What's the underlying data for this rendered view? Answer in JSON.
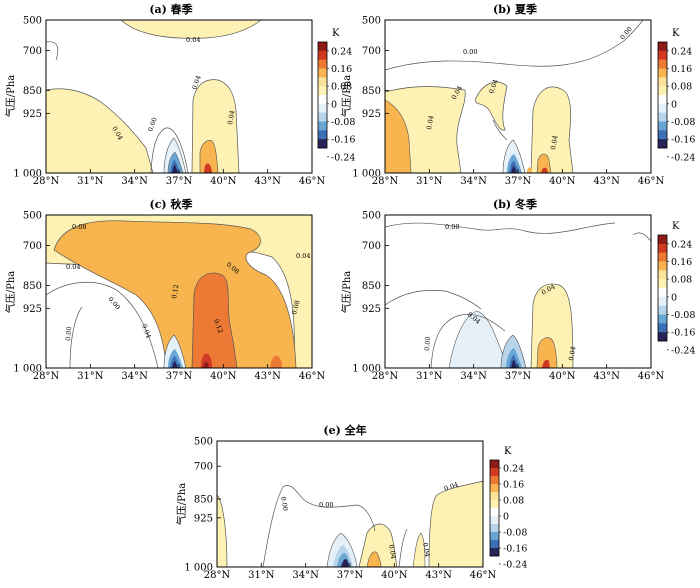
{
  "colors": {
    "lightyellow": "#fdf2b3",
    "yellow": "#fde39a",
    "orange": "#f7b44f",
    "darkorange": "#ec7a34",
    "red": "#d03a22",
    "darkred": "#8e1b17",
    "white": "#ffffff",
    "lightblue": "#e6f0f8",
    "skyblue": "#b8d4ea",
    "blue": "#6aa6d3",
    "midblue": "#3c6fb6",
    "navy": "#262456",
    "contour": "#555555",
    "frame": "#000000"
  },
  "axes_text": {
    "ylabel": "气压/Pha",
    "xticks": [
      "28°N",
      "31°N",
      "34°N",
      "37°N",
      "40°N",
      "43°N",
      "46°N"
    ],
    "yticks": [
      "500",
      "700",
      "850",
      "925",
      "1 000"
    ]
  },
  "colorbar": {
    "unit": "K",
    "labels": [
      "0.24",
      "0.16",
      "0.08",
      "0",
      "-0.08",
      "-0.16",
      "-0.24"
    ]
  },
  "chart_data": [
    {
      "type": "heatmap",
      "title": "(a) 春季",
      "xlabel": "",
      "ylabel": "气压/Pha",
      "x_range": [
        "28°N",
        "46°N"
      ],
      "y_range": [
        1000,
        500
      ],
      "contour_labels": [
        "0.04",
        "0.04",
        "0.04",
        "0.04",
        "0.00"
      ],
      "features": [
        {
          "kind": "positive",
          "value": 0.04,
          "lat_range": [
            28,
            34.5
          ],
          "pressure": [
            1000,
            860
          ]
        },
        {
          "kind": "positive",
          "value": 0.04,
          "lat_range": [
            33.5,
            40
          ],
          "pressure": [
            520,
            500
          ]
        },
        {
          "kind": "positive",
          "value": 0.04,
          "lat_range": [
            38.5,
            41
          ],
          "pressure": [
            1000,
            840
          ]
        },
        {
          "kind": "positive_core",
          "value": 0.12,
          "lat": 39,
          "pressure": 1000
        },
        {
          "kind": "negative_core",
          "value": -0.24,
          "lat": 37,
          "pressure": 1000
        }
      ]
    },
    {
      "type": "heatmap",
      "title": "(b) 夏季",
      "xlabel": "",
      "ylabel": "气压/Pha",
      "x_range": [
        "28°N",
        "46°N"
      ],
      "y_range": [
        1000,
        500
      ],
      "contour_labels": [
        "0.00",
        "0.00",
        "0.04",
        "0.04",
        "0.04",
        "0.04"
      ],
      "features": [
        {
          "kind": "positive",
          "value": 0.04,
          "lat_range": [
            28,
            33
          ],
          "pressure": [
            1000,
            850
          ]
        },
        {
          "kind": "positive_core",
          "value": 0.08,
          "lat": 28.5,
          "pressure": 940
        },
        {
          "kind": "positive",
          "value": 0.04,
          "lat_range": [
            36,
            41
          ],
          "pressure": [
            1000,
            820
          ]
        },
        {
          "kind": "negative_core",
          "value": -0.24,
          "lat": 37,
          "pressure": 1000
        }
      ]
    },
    {
      "type": "heatmap",
      "title": "(c) 秋季",
      "xlabel": "",
      "ylabel": "气压/Pha",
      "x_range": [
        "28°N",
        "46°N"
      ],
      "y_range": [
        1000,
        500
      ],
      "contour_labels": [
        "0.08",
        "0.08",
        "0.04",
        "0.04",
        "0.12",
        "0.12",
        "0.08",
        "0.04",
        "0.00",
        "0.00"
      ],
      "features": [
        {
          "kind": "positive",
          "value": 0.08,
          "lat_range": [
            28,
            46
          ],
          "pressure": [
            1000,
            500
          ]
        },
        {
          "kind": "positive",
          "value": 0.12,
          "lat_range": [
            37.5,
            40
          ],
          "pressure": [
            1000,
            780
          ]
        },
        {
          "kind": "positive_core",
          "value": 0.16,
          "lat": 38.5,
          "pressure": 1000
        },
        {
          "kind": "negative_core",
          "value": -0.24,
          "lat": 37,
          "pressure": 1000
        }
      ]
    },
    {
      "type": "heatmap",
      "title": "(b) 冬季",
      "xlabel": "",
      "ylabel": "气压/Pha",
      "x_range": [
        "28°N",
        "46°N"
      ],
      "y_range": [
        1000,
        500
      ],
      "contour_labels": [
        "0.00",
        "0.04",
        "0.04",
        "0.04",
        "0.00"
      ],
      "features": [
        {
          "kind": "negative",
          "value": -0.04,
          "lat_range": [
            31,
            37.5
          ],
          "pressure": [
            1000,
            900
          ]
        },
        {
          "kind": "positive",
          "value": 0.04,
          "lat_range": [
            38.5,
            41.5
          ],
          "pressure": [
            1000,
            840
          ]
        },
        {
          "kind": "positive_core",
          "value": 0.12,
          "lat": 39,
          "pressure": 1000
        },
        {
          "kind": "negative_core",
          "value": -0.24,
          "lat": 37,
          "pressure": 1000
        }
      ]
    },
    {
      "type": "heatmap",
      "title": "(e) 全年",
      "xlabel": "",
      "ylabel": "气压/Pha",
      "x_range": [
        "28°N",
        "46°N"
      ],
      "y_range": [
        1000,
        500
      ],
      "contour_labels": [
        "0.00",
        "0.00",
        "0.04",
        "0.04",
        "0.04"
      ],
      "features": [
        {
          "kind": "positive",
          "value": 0.04,
          "lat_range": [
            28,
            28.5
          ],
          "pressure": [
            1000,
            920
          ]
        },
        {
          "kind": "positive",
          "value": 0.04,
          "lat_range": [
            38,
            40
          ],
          "pressure": [
            1000,
            920
          ]
        },
        {
          "kind": "positive",
          "value": 0.04,
          "lat_range": [
            42.5,
            46
          ],
          "pressure": [
            1000,
            820
          ]
        },
        {
          "kind": "negative_core",
          "value": -0.24,
          "lat": 37,
          "pressure": 1000
        }
      ]
    }
  ]
}
